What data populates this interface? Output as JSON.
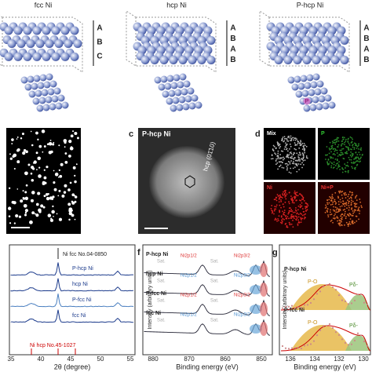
{
  "top": {
    "panels": [
      {
        "title": "fcc Ni",
        "stack": [
          "A",
          "B",
          "C"
        ]
      },
      {
        "title": "hcp Ni",
        "stack": [
          "A",
          "B",
          "A",
          "B"
        ]
      },
      {
        "title": "P-hcp Ni",
        "stack": [
          "A",
          "B",
          "A",
          "B"
        ],
        "dopant": "P"
      }
    ]
  },
  "middle": {
    "c": {
      "label": "c",
      "title": "P-hcp Ni",
      "annotation": "hcp (01̄10)"
    },
    "d": {
      "label": "d",
      "maps": [
        "Mix",
        "P",
        "Ni",
        "Ni+P"
      ]
    }
  },
  "xrd": {
    "reference_top": "Ni fcc No.04-0850",
    "samples": [
      "P-hcp Ni",
      "hcp Ni",
      "P-fcc Ni",
      "fcc Ni"
    ],
    "reference_bottom": "Ni hcp No.45-1027",
    "xticks": [
      "35",
      "40",
      "45",
      "50",
      "55"
    ],
    "xlabel": "2θ (degree)"
  },
  "f": {
    "label": "f",
    "samples": [
      "P-hcp Ni",
      "hcp Ni",
      "P-fcc Ni",
      "fcc Ni"
    ],
    "sat": "Sat.",
    "peak_half": "Ni2p1/2",
    "peak_three": "Ni2p3/2",
    "ylabel": "Intensity (arbitrary units)",
    "xticks": [
      "880",
      "870",
      "860",
      "850"
    ],
    "xlabel": "Binding energy (eV)"
  },
  "g": {
    "label": "g",
    "samples": [
      "P-hcp Ni",
      "P-fcc Ni"
    ],
    "peak_o": "P-O",
    "peak_p": "Pδ-",
    "ylabel": "Intensity (arbitrary units)",
    "xticks": [
      "136",
      "134",
      "132",
      "130"
    ],
    "xlabel": "Binding energy (eV)"
  }
}
